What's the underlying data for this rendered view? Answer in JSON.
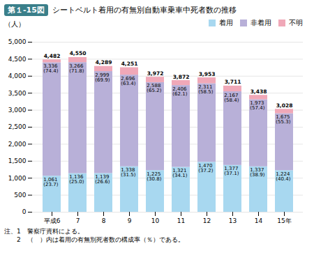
{
  "chart_data": {
    "type": "bar",
    "stacked": true,
    "title": "第１-15図",
    "subtitle": "シートベルト着用の有無別自動車乗車中死者数の推移",
    "ylabel": "（人）",
    "categories": [
      "平成6",
      "7",
      "8",
      "9",
      "10",
      "11",
      "12",
      "13",
      "14",
      "15年"
    ],
    "series": [
      {
        "name": "着用",
        "color": "#a8d8f0",
        "values": [
          1061,
          1136,
          1139,
          1338,
          1225,
          1321,
          1470,
          1377,
          1337,
          1224
        ],
        "value_labels": [
          "1,061",
          "1,136",
          "1,139",
          "1,338",
          "1,225",
          "1,321",
          "1,470",
          "1,377",
          "1,337",
          "1,224"
        ],
        "shares": [
          23.7,
          25.0,
          26.6,
          31.5,
          30.8,
          34.1,
          37.2,
          37.1,
          38.9,
          40.4
        ],
        "share_labels": [
          "(23.7)",
          "(25.0)",
          "(26.6)",
          "(31.5)",
          "(30.8)",
          "(34.1)",
          "(37.2)",
          "(37.1)",
          "(38.9)",
          "(40.4)"
        ]
      },
      {
        "name": "非着用",
        "color": "#b8b0d8",
        "values": [
          3336,
          3266,
          2999,
          2696,
          2588,
          2406,
          2311,
          2167,
          1973,
          1675
        ],
        "value_labels": [
          "3,336",
          "3,266",
          "2,999",
          "2,696",
          "2,588",
          "2,406",
          "2,311",
          "2,167",
          "1,973",
          "1,675"
        ],
        "shares": [
          74.4,
          71.8,
          69.9,
          63.4,
          65.2,
          62.1,
          58.5,
          58.4,
          57.4,
          55.3
        ],
        "share_labels": [
          "(74.4)",
          "(71.8)",
          "(69.9)",
          "(63.4)",
          "(65.2)",
          "(62.1)",
          "(58.5)",
          "(58.4)",
          "(57.4)",
          "(55.3)"
        ]
      },
      {
        "name": "不明",
        "color": "#f0a8b8",
        "values": [
          85,
          148,
          151,
          217,
          159,
          145,
          172,
          167,
          128,
          129
        ]
      }
    ],
    "totals": [
      4482,
      4550,
      4289,
      4251,
      3972,
      3872,
      3953,
      3711,
      3438,
      3028
    ],
    "total_labels": [
      "4,482",
      "4,550",
      "4,289",
      "4,251",
      "3,972",
      "3,872",
      "3,953",
      "3,711",
      "3,438",
      "3,028"
    ],
    "ylim": [
      0,
      5000
    ],
    "yticks": [
      0,
      500,
      {
        "value": 1000,
        "label": "1,000"
      },
      {
        "value": 1500,
        "label": "1,500"
      },
      {
        "value": 2000,
        "label": "2,000"
      },
      {
        "value": 2500,
        "label": "2,500"
      },
      {
        "value": 3000,
        "label": "3,000"
      },
      {
        "value": 3500,
        "label": "3,500"
      },
      {
        "value": 4000,
        "label": "4,000"
      },
      {
        "value": 4500,
        "label": "4,500"
      },
      {
        "value": 5000,
        "label": "5,000"
      }
    ],
    "grid": true,
    "legend": "upper right",
    "data_labels": true,
    "annotations": [
      "注、1　警察庁資料による。",
      "　　2　（　）内は着用の有無別死者数の構成率（％）である。"
    ]
  }
}
